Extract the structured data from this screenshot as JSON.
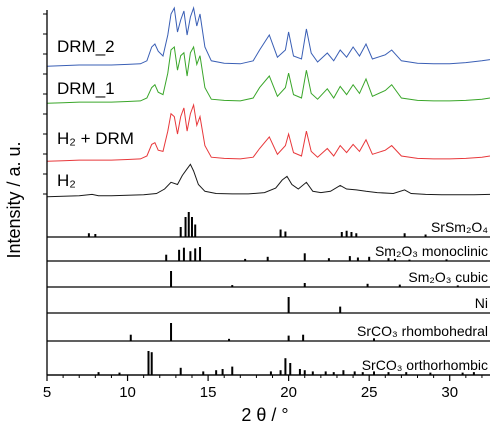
{
  "chart_data": {
    "type": "line",
    "xlabel": "2 θ / °",
    "ylabel": "Intensity / a. u.",
    "xlim": [
      5,
      32.5
    ],
    "x_ticks": [
      "5",
      "10",
      "15",
      "20",
      "25",
      "30"
    ],
    "series": [
      {
        "name": "DRM_2",
        "color": "#3a5fb5",
        "points": [
          [
            5,
            0.03
          ],
          [
            6,
            0.04
          ],
          [
            7,
            0.05
          ],
          [
            8,
            0.05
          ],
          [
            9,
            0.05
          ],
          [
            10,
            0.06
          ],
          [
            10.8,
            0.07
          ],
          [
            11.2,
            0.12
          ],
          [
            11.5,
            0.35
          ],
          [
            11.7,
            0.4
          ],
          [
            11.9,
            0.28
          ],
          [
            12.2,
            0.2
          ],
          [
            12.5,
            0.55
          ],
          [
            12.7,
            0.9
          ],
          [
            12.9,
            1.0
          ],
          [
            13.1,
            0.6
          ],
          [
            13.3,
            0.8
          ],
          [
            13.5,
            0.95
          ],
          [
            13.7,
            0.55
          ],
          [
            13.9,
            0.85
          ],
          [
            14.1,
            1.0
          ],
          [
            14.3,
            0.7
          ],
          [
            14.5,
            0.9
          ],
          [
            14.8,
            0.35
          ],
          [
            15.2,
            0.12
          ],
          [
            16,
            0.08
          ],
          [
            17,
            0.07
          ],
          [
            17.8,
            0.12
          ],
          [
            18.2,
            0.3
          ],
          [
            18.8,
            0.55
          ],
          [
            19.3,
            0.18
          ],
          [
            19.8,
            0.3
          ],
          [
            20.0,
            0.6
          ],
          [
            20.3,
            0.2
          ],
          [
            20.8,
            0.15
          ],
          [
            21.1,
            0.65
          ],
          [
            21.4,
            0.25
          ],
          [
            21.8,
            0.1
          ],
          [
            22.4,
            0.25
          ],
          [
            22.8,
            0.12
          ],
          [
            23.2,
            0.3
          ],
          [
            23.6,
            0.18
          ],
          [
            24.0,
            0.35
          ],
          [
            24.4,
            0.2
          ],
          [
            24.8,
            0.4
          ],
          [
            25.2,
            0.15
          ],
          [
            26.0,
            0.22
          ],
          [
            26.4,
            0.3
          ],
          [
            27.0,
            0.12
          ],
          [
            28.0,
            0.08
          ],
          [
            29,
            0.07
          ],
          [
            30,
            0.07
          ],
          [
            31,
            0.09
          ],
          [
            32,
            0.12
          ],
          [
            32.5,
            0.14
          ]
        ]
      },
      {
        "name": "DRM_1",
        "color": "#3aa62a",
        "points": [
          [
            5,
            0.03
          ],
          [
            6,
            0.04
          ],
          [
            7,
            0.05
          ],
          [
            8,
            0.05
          ],
          [
            9,
            0.05
          ],
          [
            10,
            0.06
          ],
          [
            10.8,
            0.07
          ],
          [
            11.2,
            0.12
          ],
          [
            11.5,
            0.3
          ],
          [
            11.7,
            0.35
          ],
          [
            11.9,
            0.22
          ],
          [
            12.2,
            0.18
          ],
          [
            12.5,
            0.55
          ],
          [
            12.7,
            0.95
          ],
          [
            12.9,
            1.0
          ],
          [
            13.1,
            0.6
          ],
          [
            13.3,
            0.85
          ],
          [
            13.5,
            0.9
          ],
          [
            13.7,
            0.5
          ],
          [
            13.9,
            0.9
          ],
          [
            14.1,
            1.0
          ],
          [
            14.3,
            0.7
          ],
          [
            14.5,
            0.85
          ],
          [
            14.8,
            0.3
          ],
          [
            15.2,
            0.1
          ],
          [
            16,
            0.08
          ],
          [
            17,
            0.07
          ],
          [
            17.8,
            0.12
          ],
          [
            18.2,
            0.3
          ],
          [
            18.8,
            0.5
          ],
          [
            19.3,
            0.15
          ],
          [
            19.8,
            0.3
          ],
          [
            20.0,
            0.55
          ],
          [
            20.3,
            0.18
          ],
          [
            20.8,
            0.12
          ],
          [
            21.1,
            0.6
          ],
          [
            21.4,
            0.2
          ],
          [
            21.8,
            0.1
          ],
          [
            22.4,
            0.28
          ],
          [
            22.8,
            0.12
          ],
          [
            23.2,
            0.32
          ],
          [
            23.6,
            0.18
          ],
          [
            24.0,
            0.35
          ],
          [
            24.4,
            0.2
          ],
          [
            24.8,
            0.45
          ],
          [
            25.2,
            0.15
          ],
          [
            26.0,
            0.25
          ],
          [
            26.4,
            0.35
          ],
          [
            27.0,
            0.12
          ],
          [
            28.0,
            0.08
          ],
          [
            29,
            0.07
          ],
          [
            30,
            0.07
          ],
          [
            31,
            0.08
          ],
          [
            32,
            0.1
          ],
          [
            32.5,
            0.12
          ]
        ]
      },
      {
        "name": "H₂ + DRM",
        "color": "#e8383b",
        "points": [
          [
            5,
            0.03
          ],
          [
            6,
            0.04
          ],
          [
            7,
            0.05
          ],
          [
            8,
            0.05
          ],
          [
            9,
            0.05
          ],
          [
            10,
            0.06
          ],
          [
            10.8,
            0.07
          ],
          [
            11.2,
            0.12
          ],
          [
            11.5,
            0.32
          ],
          [
            11.7,
            0.35
          ],
          [
            11.9,
            0.22
          ],
          [
            12.2,
            0.2
          ],
          [
            12.5,
            0.55
          ],
          [
            12.7,
            0.85
          ],
          [
            12.9,
            0.8
          ],
          [
            13.1,
            0.5
          ],
          [
            13.3,
            0.8
          ],
          [
            13.5,
            0.95
          ],
          [
            13.7,
            0.55
          ],
          [
            13.9,
            0.85
          ],
          [
            14.1,
            1.0
          ],
          [
            14.3,
            0.65
          ],
          [
            14.5,
            0.8
          ],
          [
            14.8,
            0.3
          ],
          [
            15.2,
            0.1
          ],
          [
            16,
            0.08
          ],
          [
            17,
            0.07
          ],
          [
            17.8,
            0.1
          ],
          [
            18.2,
            0.25
          ],
          [
            18.8,
            0.45
          ],
          [
            19.3,
            0.15
          ],
          [
            19.8,
            0.3
          ],
          [
            20.0,
            0.5
          ],
          [
            20.3,
            0.18
          ],
          [
            20.8,
            0.12
          ],
          [
            21.1,
            0.55
          ],
          [
            21.4,
            0.2
          ],
          [
            21.8,
            0.1
          ],
          [
            22.4,
            0.25
          ],
          [
            22.8,
            0.12
          ],
          [
            23.2,
            0.3
          ],
          [
            23.6,
            0.18
          ],
          [
            24.0,
            0.32
          ],
          [
            24.4,
            0.2
          ],
          [
            24.8,
            0.4
          ],
          [
            25.2,
            0.15
          ],
          [
            26.0,
            0.22
          ],
          [
            26.4,
            0.3
          ],
          [
            27.0,
            0.12
          ],
          [
            28.0,
            0.08
          ],
          [
            29,
            0.07
          ],
          [
            30,
            0.07
          ],
          [
            31,
            0.08
          ],
          [
            32,
            0.1
          ],
          [
            32.5,
            0.12
          ]
        ]
      },
      {
        "name": "H₂",
        "color": "#1a1a1a",
        "points": [
          [
            5,
            0.03
          ],
          [
            6,
            0.04
          ],
          [
            7,
            0.05
          ],
          [
            7.8,
            0.08
          ],
          [
            8.2,
            0.05
          ],
          [
            9,
            0.05
          ],
          [
            10,
            0.06
          ],
          [
            11,
            0.07
          ],
          [
            11.8,
            0.1
          ],
          [
            12.3,
            0.2
          ],
          [
            12.7,
            0.35
          ],
          [
            13.1,
            0.3
          ],
          [
            13.4,
            0.5
          ],
          [
            13.7,
            0.65
          ],
          [
            13.9,
            0.75
          ],
          [
            14.1,
            0.6
          ],
          [
            14.4,
            0.3
          ],
          [
            14.8,
            0.15
          ],
          [
            15.5,
            0.1
          ],
          [
            16.5,
            0.09
          ],
          [
            17.5,
            0.09
          ],
          [
            18.5,
            0.12
          ],
          [
            19.2,
            0.22
          ],
          [
            19.6,
            0.4
          ],
          [
            19.9,
            0.48
          ],
          [
            20.2,
            0.3
          ],
          [
            20.6,
            0.2
          ],
          [
            21.1,
            0.35
          ],
          [
            21.5,
            0.15
          ],
          [
            22,
            0.12
          ],
          [
            22.6,
            0.15
          ],
          [
            23.2,
            0.28
          ],
          [
            23.6,
            0.2
          ],
          [
            24.2,
            0.18
          ],
          [
            24.8,
            0.15
          ],
          [
            25.5,
            0.12
          ],
          [
            26.5,
            0.1
          ],
          [
            27.2,
            0.18
          ],
          [
            27.6,
            0.1
          ],
          [
            28.5,
            0.08
          ],
          [
            29.5,
            0.07
          ],
          [
            30.5,
            0.07
          ],
          [
            31.5,
            0.07
          ],
          [
            32.5,
            0.08
          ]
        ]
      }
    ],
    "references": [
      {
        "name": "SrSm₂O₄",
        "sticks": [
          [
            7.6,
            0.15
          ],
          [
            8.0,
            0.12
          ],
          [
            13.3,
            0.4
          ],
          [
            13.6,
            0.8
          ],
          [
            13.8,
            1.0
          ],
          [
            14.0,
            0.8
          ],
          [
            14.2,
            0.5
          ],
          [
            19.5,
            0.3
          ],
          [
            19.8,
            0.22
          ],
          [
            23.3,
            0.2
          ],
          [
            23.6,
            0.25
          ],
          [
            23.9,
            0.2
          ],
          [
            24.2,
            0.15
          ],
          [
            27.2,
            0.15
          ],
          [
            28.5,
            0.1
          ]
        ]
      },
      {
        "name": "Sm₂O₃ monoclinic",
        "sticks": [
          [
            12.4,
            0.45
          ],
          [
            13.2,
            0.8
          ],
          [
            13.5,
            0.95
          ],
          [
            13.9,
            0.7
          ],
          [
            14.2,
            0.9
          ],
          [
            14.5,
            1.0
          ],
          [
            17.3,
            0.15
          ],
          [
            18.7,
            0.3
          ],
          [
            21.0,
            0.55
          ],
          [
            22.5,
            0.2
          ],
          [
            23.8,
            0.35
          ],
          [
            24.3,
            0.25
          ],
          [
            25.0,
            0.3
          ],
          [
            26.2,
            0.2
          ],
          [
            26.6,
            0.15
          ],
          [
            27.5,
            0.1
          ],
          [
            29.8,
            0.12
          ]
        ]
      },
      {
        "name": "Sm₂O₃ cubic",
        "sticks": [
          [
            12.7,
            1.0
          ],
          [
            16.5,
            0.12
          ],
          [
            21.0,
            0.25
          ],
          [
            24.9,
            0.2
          ],
          [
            26.9,
            0.15
          ],
          [
            30.5,
            0.1
          ]
        ]
      },
      {
        "name": "Ni",
        "sticks": [
          [
            20.0,
            1.0
          ],
          [
            23.2,
            0.4
          ]
        ]
      },
      {
        "name": "SrCO₃ rhombohedral",
        "sticks": [
          [
            10.2,
            0.35
          ],
          [
            12.7,
            1.0
          ],
          [
            16.3,
            0.12
          ],
          [
            20.0,
            0.3
          ],
          [
            20.9,
            0.35
          ],
          [
            25.3,
            0.15
          ]
        ]
      },
      {
        "name": "SrCO₃ orthorhombic",
        "sticks": [
          [
            8.2,
            0.12
          ],
          [
            9.5,
            0.1
          ],
          [
            11.3,
            1.0
          ],
          [
            11.5,
            0.95
          ],
          [
            13.3,
            0.3
          ],
          [
            14.7,
            0.15
          ],
          [
            15.5,
            0.2
          ],
          [
            15.9,
            0.25
          ],
          [
            16.5,
            0.35
          ],
          [
            18.9,
            0.15
          ],
          [
            19.5,
            0.2
          ],
          [
            19.8,
            0.7
          ],
          [
            20.1,
            0.5
          ],
          [
            20.7,
            0.25
          ],
          [
            21.0,
            0.2
          ],
          [
            21.5,
            0.15
          ],
          [
            22.3,
            0.15
          ],
          [
            22.8,
            0.12
          ],
          [
            23.4,
            0.2
          ],
          [
            24.1,
            0.15
          ],
          [
            24.6,
            0.12
          ],
          [
            25.3,
            0.15
          ],
          [
            26.2,
            0.12
          ],
          [
            27.3,
            0.12
          ],
          [
            28.8,
            0.1
          ],
          [
            30.8,
            0.1
          ],
          [
            31.5,
            0.12
          ]
        ]
      }
    ]
  }
}
